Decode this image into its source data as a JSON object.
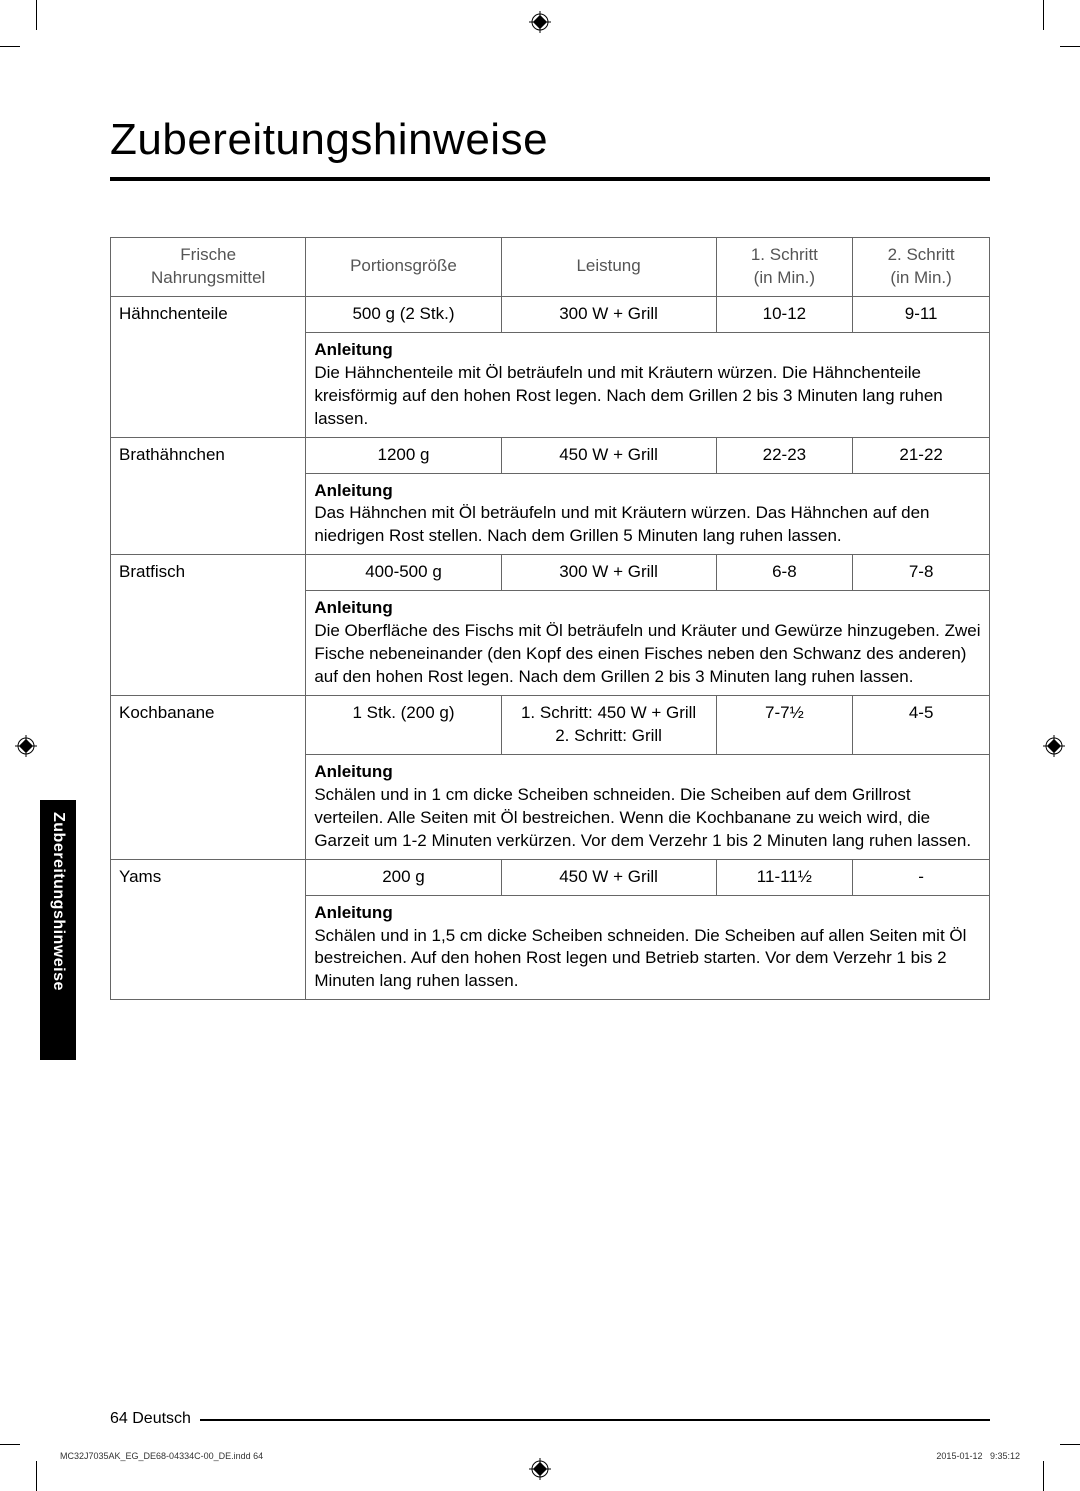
{
  "title": "Zubereitungshinweise",
  "sideTab": "Zubereitungshinweise",
  "headers": {
    "food": "Frische\nNahrungsmittel",
    "portion": "Portionsgröße",
    "power": "Leistung",
    "step1": "1. Schritt\n(in Min.)",
    "step2": "2. Schritt\n(in Min.)"
  },
  "rows": [
    {
      "food": "Hähnchenteile",
      "portion": "500 g (2 Stk.)",
      "power": "300 W + Grill",
      "step1": "10-12",
      "step2": "9-11",
      "anleitung": "Die Hähnchenteile mit Öl beträufeln und mit Kräutern würzen. Die Hähnchenteile kreisförmig auf den hohen Rost legen. Nach dem Grillen 2 bis 3 Minuten lang ruhen lassen."
    },
    {
      "food": "Brathähnchen",
      "portion": "1200 g",
      "power": "450 W + Grill",
      "step1": "22-23",
      "step2": "21-22",
      "anleitung": "Das Hähnchen mit Öl beträufeln und mit Kräutern würzen. Das Hähnchen auf den niedrigen Rost stellen. Nach dem Grillen 5 Minuten lang ruhen lassen."
    },
    {
      "food": "Bratfisch",
      "portion": "400-500 g",
      "power": "300 W + Grill",
      "step1": "6-8",
      "step2": "7-8",
      "anleitung": "Die Oberfläche des Fischs mit Öl beträufeln und Kräuter und Gewürze hinzugeben. Zwei Fische nebeneinander (den Kopf des einen Fisches neben den Schwanz des anderen) auf den hohen Rost legen. Nach dem Grillen 2 bis 3 Minuten lang ruhen lassen."
    },
    {
      "food": "Kochbanane",
      "portion": "1 Stk. (200 g)",
      "power": "1. Schritt: 450 W + Grill\n2. Schritt: Grill",
      "step1": "7-7½",
      "step2": "4-5",
      "anleitung": "Schälen und in 1 cm dicke Scheiben schneiden. Die Scheiben auf dem Grillrost verteilen. Alle Seiten mit Öl bestreichen. Wenn die Kochbanane zu weich wird, die Garzeit um 1-2 Minuten verkürzen. Vor dem Verzehr 1 bis 2 Minuten lang ruhen lassen."
    },
    {
      "food": "Yams",
      "portion": "200 g",
      "power": "450 W + Grill",
      "step1": "11-11½",
      "step2": "-",
      "anleitung": "Schälen und in 1,5 cm dicke Scheiben schneiden. Die Scheiben auf allen Seiten mit Öl bestreichen. Auf den hohen Rost legen und Betrieb starten. Vor dem Verzehr 1 bis 2 Minuten lang ruhen lassen."
    }
  ],
  "anleitungLabel": "Anleitung",
  "footer": {
    "pageNumber": "64",
    "language": "Deutsch"
  },
  "tinyFooter": {
    "left": "MC32J7035AK_EG_DE68-04334C-00_DE.indd   64",
    "right": "2015-01-12     9:35:12"
  },
  "style": {
    "text_color": "#000000",
    "header_text_color": "#555555",
    "border_color": "#666666",
    "title_fontsize": 44,
    "body_fontsize": 17,
    "tab_background": "#000000"
  }
}
